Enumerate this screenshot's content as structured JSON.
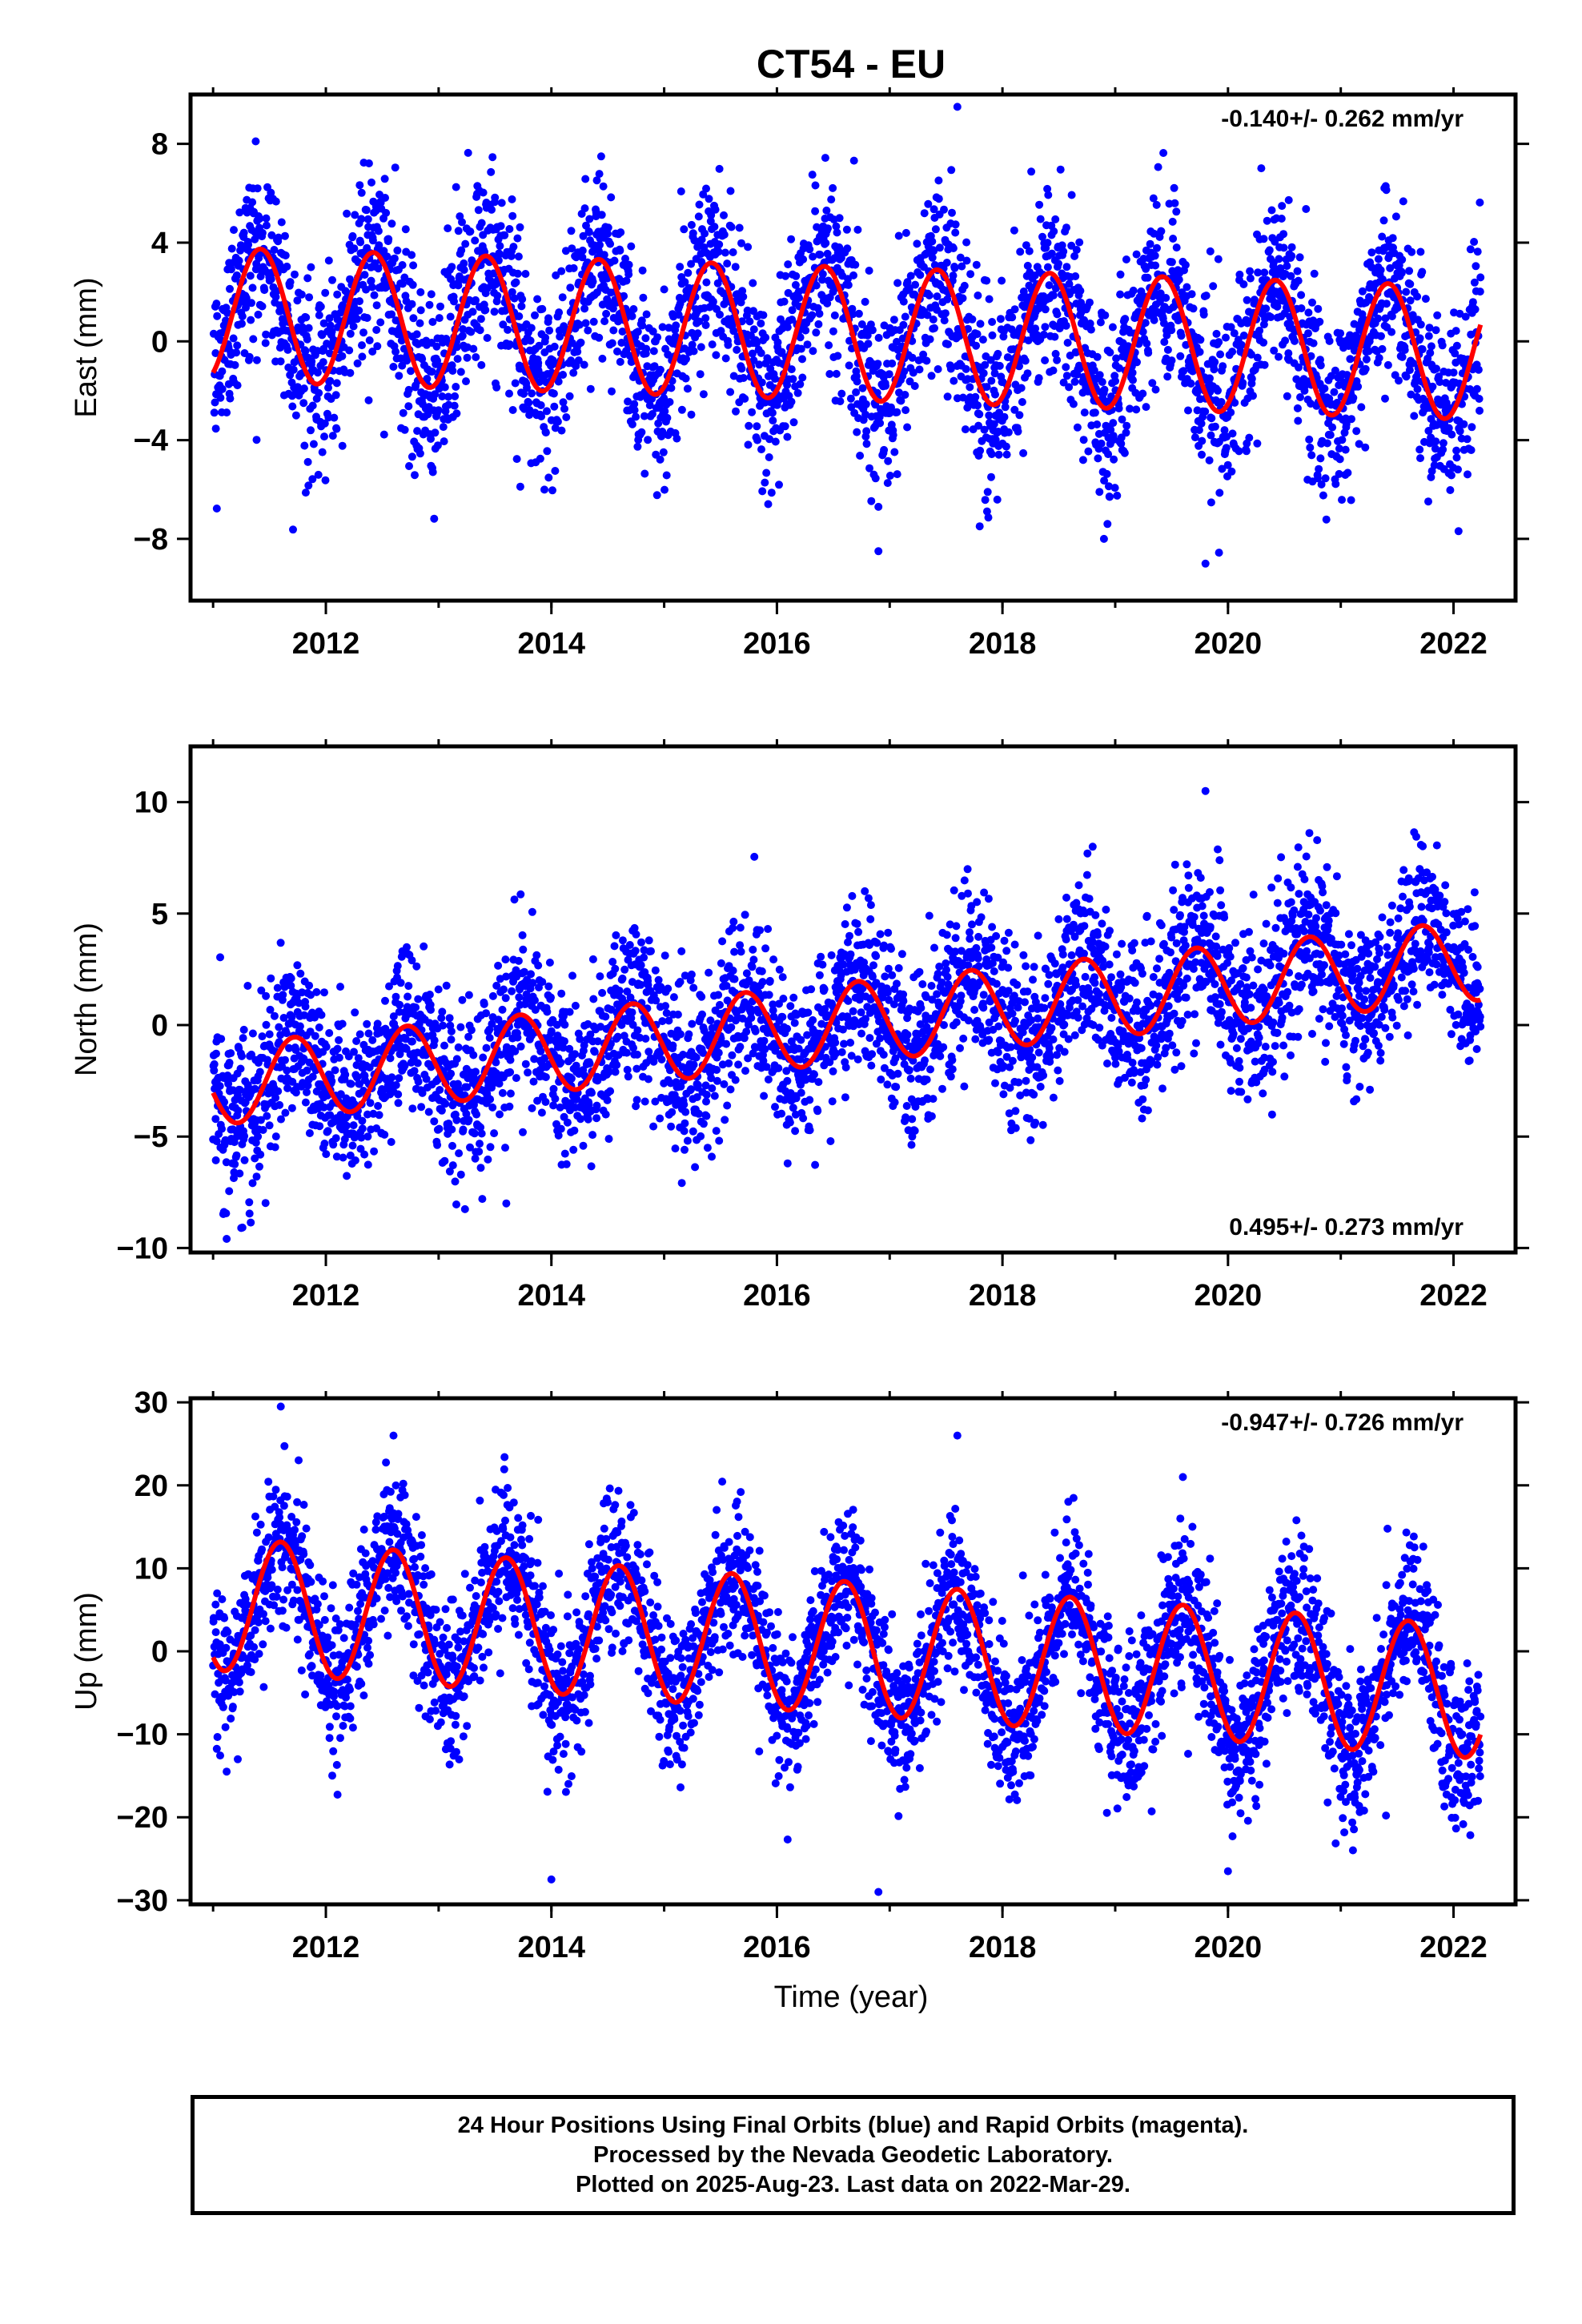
{
  "title": "CT54 - EU",
  "xlabel": "Time (year)",
  "footer": {
    "line1": "24 Hour Positions Using Final Orbits (blue) and Rapid Orbits (magenta).",
    "line2": "Processed by the Nevada Geodetic Laboratory.",
    "line3": "Plotted on 2025-Aug-23. Last data on 2022-Mar-29."
  },
  "colors": {
    "observations": "#0000ff",
    "model": "#ff0000",
    "rapid": "#ff00ff",
    "frame": "#000000"
  },
  "chart_data": [
    {
      "type": "scatter",
      "component": "East",
      "ylabel": "East (mm)",
      "xlim": [
        2010.8,
        2022.55
      ],
      "ylim": [
        -10.5,
        10
      ],
      "xticks": [
        2012,
        2014,
        2016,
        2018,
        2020,
        2022
      ],
      "yticks": [
        -8,
        -4,
        0,
        4,
        8
      ],
      "rate_label": "-0.140+/- 0.262 mm/yr",
      "rate_label_position": "top-right",
      "data_span": [
        2011.0,
        2022.24
      ],
      "model": {
        "offset_at_2016": 0.4,
        "rate": -0.14,
        "annual_amp": 2.7,
        "annual_peak": 0.42
      },
      "series": [
        {
          "name": "Final Orbits (blue)",
          "style": "points",
          "noise_sd": 1.9
        },
        {
          "name": "Fit",
          "style": "line"
        }
      ],
      "sample_points": [
        [
          2011.4,
          3.5
        ],
        [
          2012.4,
          3.0
        ],
        [
          2015.4,
          3.5
        ],
        [
          2016.9,
          -8.5
        ],
        [
          2017.6,
          9.5
        ],
        [
          2018.9,
          -8.0
        ],
        [
          2019.8,
          -9.0
        ],
        [
          2021.8,
          -5.5
        ]
      ]
    },
    {
      "type": "scatter",
      "component": "North",
      "ylabel": "North (mm)",
      "xlim": [
        2010.8,
        2022.55
      ],
      "ylim": [
        -10.2,
        12.5
      ],
      "xticks": [
        2012,
        2014,
        2016,
        2018,
        2020,
        2022
      ],
      "yticks": [
        -10,
        -5,
        0,
        5,
        10
      ],
      "rate_label": "0.495+/- 0.273 mm/yr",
      "rate_label_position": "bottom-right",
      "data_span": [
        2011.0,
        2022.24
      ],
      "model": {
        "offset_at_2016": -0.2,
        "rate": 0.5,
        "annual_amp": 1.8,
        "annual_peak": 0.72
      },
      "series": [
        {
          "name": "Final Orbits (blue)",
          "style": "points",
          "noise_sd": 1.9
        },
        {
          "name": "Fit",
          "style": "line"
        }
      ],
      "sample_points": [
        [
          2011.5,
          -4.5
        ],
        [
          2013.6,
          -8.0
        ],
        [
          2017.2,
          -5.0
        ],
        [
          2018.8,
          8.0
        ],
        [
          2019.8,
          10.5
        ],
        [
          2021.7,
          7.0
        ]
      ]
    },
    {
      "type": "scatter",
      "component": "Up",
      "ylabel": "Up (mm)",
      "xlim": [
        2010.8,
        2022.55
      ],
      "ylim": [
        -30.5,
        30.5
      ],
      "xticks": [
        2012,
        2014,
        2016,
        2018,
        2020,
        2022
      ],
      "yticks": [
        -30,
        -20,
        -10,
        0,
        10,
        20,
        30
      ],
      "rate_label": "-0.947+/- 0.726 mm/yr",
      "rate_label_position": "top-right",
      "data_span": [
        2011.0,
        2022.24
      ],
      "model": {
        "offset_at_2016": 1.0,
        "rate": -0.95,
        "annual_amp": 8.0,
        "annual_peak": 0.6
      },
      "series": [
        {
          "name": "Final Orbits (blue)",
          "style": "points",
          "noise_sd": 4.6
        },
        {
          "name": "Fit",
          "style": "line"
        }
      ],
      "sample_points": [
        [
          2011.6,
          29.5
        ],
        [
          2012.6,
          26.0
        ],
        [
          2014.0,
          -27.5
        ],
        [
          2016.9,
          -29.0
        ],
        [
          2017.6,
          26.0
        ],
        [
          2019.6,
          21.0
        ],
        [
          2020.0,
          -26.5
        ]
      ]
    }
  ]
}
